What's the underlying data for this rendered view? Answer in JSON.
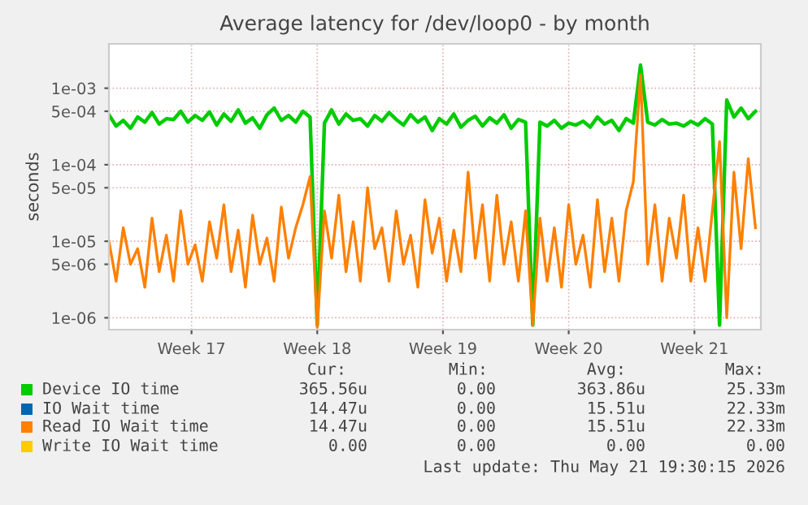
{
  "chart_data": {
    "type": "line",
    "title": "Average latency for /dev/loop0 - by month",
    "ylabel": "seconds",
    "log": "y",
    "grid": true,
    "legend": "bottom",
    "line_style": "solid",
    "xlim": [
      "2026-04-15T09:36",
      "2026-05-21T16:48"
    ],
    "xticks": [
      {
        "value": "2026-04-20",
        "label": "Week 17"
      },
      {
        "value": "2026-04-27",
        "label": "Week 18"
      },
      {
        "value": "2026-05-04",
        "label": "Week 19"
      },
      {
        "value": "2026-05-11",
        "label": "Week 20"
      },
      {
        "value": "2026-05-18",
        "label": "Week 21"
      }
    ],
    "ylim": [
      7e-07,
      0.0038
    ],
    "yticks": [
      {
        "value": 1e-06,
        "label": "1e-06"
      },
      {
        "value": 5e-06,
        "label": "5e-06"
      },
      {
        "value": 1e-05,
        "label": "1e-05"
      },
      {
        "value": 5e-05,
        "label": "5e-05"
      },
      {
        "value": 0.0001,
        "label": "1e-04"
      },
      {
        "value": 0.0005,
        "label": "5e-04"
      },
      {
        "value": 0.001,
        "label": "1e-03"
      }
    ],
    "x": [
      "2026-04-15T09:36",
      "2026-04-15T19:12",
      "2026-04-16T04:48",
      "2026-04-16T14:24",
      "2026-04-17T00:00",
      "2026-04-17T09:36",
      "2026-04-17T19:12",
      "2026-04-18T04:48",
      "2026-04-18T14:24",
      "2026-04-19T00:00",
      "2026-04-19T09:36",
      "2026-04-19T19:12",
      "2026-04-20T04:48",
      "2026-04-20T14:24",
      "2026-04-21T00:00",
      "2026-04-21T09:36",
      "2026-04-21T19:12",
      "2026-04-22T04:48",
      "2026-04-22T14:24",
      "2026-04-23T00:00",
      "2026-04-23T09:36",
      "2026-04-23T19:12",
      "2026-04-24T04:48",
      "2026-04-24T14:24",
      "2026-04-25T00:00",
      "2026-04-25T09:36",
      "2026-04-25T19:12",
      "2026-04-26T04:48",
      "2026-04-26T14:24",
      "2026-04-27T00:00",
      "2026-04-27T09:36",
      "2026-04-27T19:12",
      "2026-04-28T04:48",
      "2026-04-28T14:24",
      "2026-04-29T00:00",
      "2026-04-29T09:36",
      "2026-04-29T19:12",
      "2026-04-30T04:48",
      "2026-04-30T14:24",
      "2026-05-01T00:00",
      "2026-05-01T09:36",
      "2026-05-01T19:12",
      "2026-05-02T04:48",
      "2026-05-02T14:24",
      "2026-05-03T00:00",
      "2026-05-03T09:36",
      "2026-05-03T19:12",
      "2026-05-04T04:48",
      "2026-05-04T14:24",
      "2026-05-05T00:00",
      "2026-05-05T09:36",
      "2026-05-05T19:12",
      "2026-05-06T04:48",
      "2026-05-06T14:24",
      "2026-05-07T00:00",
      "2026-05-07T09:36",
      "2026-05-07T19:12",
      "2026-05-08T04:48",
      "2026-05-08T14:24",
      "2026-05-09T00:00",
      "2026-05-09T09:36",
      "2026-05-09T19:12",
      "2026-05-10T04:48",
      "2026-05-10T14:24",
      "2026-05-11T00:00",
      "2026-05-11T09:36",
      "2026-05-11T19:12",
      "2026-05-12T04:48",
      "2026-05-12T14:24",
      "2026-05-13T00:00",
      "2026-05-13T09:36",
      "2026-05-13T19:12",
      "2026-05-14T04:48",
      "2026-05-14T14:24",
      "2026-05-15T00:00",
      "2026-05-15T09:36",
      "2026-05-15T19:12",
      "2026-05-16T04:48",
      "2026-05-16T14:24",
      "2026-05-17T00:00",
      "2026-05-17T09:36",
      "2026-05-17T19:12",
      "2026-05-18T04:48",
      "2026-05-18T14:24",
      "2026-05-19T00:00",
      "2026-05-19T09:36",
      "2026-05-19T19:12",
      "2026-05-20T04:48",
      "2026-05-20T14:24",
      "2026-05-21T00:00",
      "2026-05-21T09:36"
    ],
    "series": [
      {
        "name": "Device IO time",
        "color": "#00cc00",
        "values": [
          0.00045,
          0.00032,
          0.00038,
          0.0003,
          0.00042,
          0.00036,
          0.00048,
          0.00034,
          0.0004,
          0.00039,
          0.0005,
          0.00036,
          0.00044,
          0.00038,
          0.00049,
          0.00033,
          0.00046,
          0.00037,
          0.00052,
          0.00035,
          0.00041,
          0.0003,
          0.00045,
          0.00055,
          0.00038,
          0.00044,
          0.00036,
          0.0005,
          0.00042,
          8e-07,
          0.00035,
          0.00052,
          0.00034,
          0.00046,
          0.00038,
          0.0004,
          0.00032,
          0.00044,
          0.00037,
          0.00048,
          0.00039,
          0.00033,
          0.00045,
          0.00036,
          0.00042,
          0.00028,
          0.0004,
          0.00034,
          0.00046,
          0.00031,
          0.00038,
          0.00043,
          0.00032,
          0.00041,
          0.00035,
          0.00045,
          0.0003,
          0.00039,
          0.00036,
          8e-07,
          0.00036,
          0.00032,
          0.00038,
          0.0003,
          0.00035,
          0.00033,
          0.00037,
          0.00031,
          0.00042,
          0.00034,
          0.00038,
          0.00028,
          0.0004,
          0.00035,
          0.002,
          0.00036,
          0.00033,
          0.00039,
          0.00034,
          0.00035,
          0.00032,
          0.00037,
          0.00033,
          0.0004,
          0.00034,
          8e-07,
          0.0007,
          0.00042,
          0.00055,
          0.0004,
          0.0005
        ]
      },
      {
        "name": "IO Wait time",
        "color": "#0066b3",
        "values": [
          null,
          null,
          null,
          null,
          null,
          null,
          null,
          null,
          null,
          null,
          null,
          null,
          null,
          null,
          null,
          null,
          null,
          null,
          null,
          null,
          null,
          null,
          null,
          null,
          null,
          null,
          null,
          null,
          null,
          null,
          null,
          null,
          null,
          null,
          null,
          null,
          null,
          null,
          null,
          null,
          null,
          null,
          null,
          null,
          null,
          null,
          null,
          null,
          null,
          null,
          null,
          null,
          null,
          null,
          null,
          null,
          null,
          null,
          null,
          null,
          null,
          null,
          null,
          null,
          null,
          null,
          null,
          null,
          null,
          null,
          null,
          null,
          null,
          null,
          null,
          null,
          null,
          null,
          null,
          null,
          null,
          null,
          null,
          null,
          null,
          null,
          null,
          null,
          null,
          null,
          null
        ]
      },
      {
        "name": "Read IO Wait time",
        "color": "#ff8000",
        "values": [
          1e-05,
          3e-06,
          1.5e-05,
          5e-06,
          8e-06,
          2.5e-06,
          2e-05,
          4e-06,
          1.2e-05,
          3e-06,
          2.5e-05,
          5e-06,
          9e-06,
          3e-06,
          1.8e-05,
          6e-06,
          3e-05,
          4e-06,
          1.4e-05,
          2.5e-06,
          2.2e-05,
          5e-06,
          1.1e-05,
          3e-06,
          2.8e-05,
          6e-06,
          1.5e-05,
          3e-05,
          7e-05,
          7.5e-07,
          2.5e-05,
          6e-06,
          4e-05,
          4e-06,
          1.8e-05,
          3e-06,
          5e-05,
          8e-06,
          1.5e-05,
          3e-06,
          2.5e-05,
          5e-06,
          1.2e-05,
          2.5e-06,
          3.5e-05,
          7e-06,
          2e-05,
          3e-06,
          1.4e-05,
          4e-06,
          8e-05,
          6e-06,
          3e-05,
          3e-06,
          4e-05,
          5e-06,
          1.8e-05,
          3e-06,
          2.5e-05,
          8e-07,
          2e-05,
          3e-06,
          1.5e-05,
          2.5e-06,
          3e-05,
          5e-06,
          1.2e-05,
          2.5e-06,
          3.5e-05,
          4e-06,
          2e-05,
          3e-06,
          2.5e-05,
          6e-05,
          0.0015,
          5e-06,
          3e-05,
          3e-06,
          2e-05,
          6e-06,
          4e-05,
          3e-06,
          1.5e-05,
          3e-06,
          2.5e-05,
          0.0002,
          1e-06,
          8e-05,
          8e-06,
          0.00012,
          1.5e-05
        ]
      },
      {
        "name": "Write IO Wait time",
        "color": "#ffcc00",
        "values": [
          null,
          null,
          null,
          null,
          null,
          null,
          null,
          null,
          null,
          null,
          null,
          null,
          null,
          null,
          null,
          null,
          null,
          null,
          null,
          null,
          null,
          null,
          null,
          null,
          null,
          null,
          null,
          null,
          null,
          null,
          null,
          null,
          null,
          null,
          null,
          null,
          null,
          null,
          null,
          null,
          null,
          null,
          null,
          null,
          null,
          null,
          null,
          null,
          null,
          null,
          null,
          null,
          null,
          null,
          null,
          null,
          null,
          null,
          null,
          null,
          null,
          null,
          null,
          null,
          null,
          null,
          null,
          null,
          null,
          null,
          null,
          null,
          null,
          null,
          null,
          null,
          null,
          null,
          null,
          null,
          null,
          null,
          null,
          null,
          null,
          null,
          null,
          null,
          null,
          null,
          null
        ]
      }
    ],
    "annotations": [
      "Cur:",
      "Min:",
      "Avg:",
      "Max:",
      "365.56u",
      "0.00",
      "363.86u",
      "25.33m",
      "14.47u",
      "0.00",
      "15.51u",
      "22.33m",
      "14.47u",
      "0.00",
      "15.51u",
      "22.33m",
      "0.00",
      "0.00",
      "0.00",
      "0.00",
      "Last update: Thu May 21 19:30:15 2026"
    ]
  }
}
